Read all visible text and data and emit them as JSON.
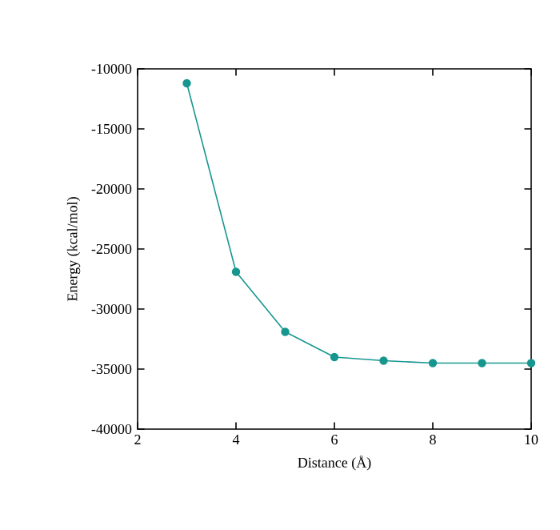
{
  "chart_data": {
    "type": "line",
    "xlabel": "Distance (Å)",
    "ylabel": "Energy (kcal/mol)",
    "x": [
      3,
      4,
      5,
      6,
      7,
      8,
      9,
      10
    ],
    "series": [
      {
        "color": "#17968f",
        "values": [
          -11200,
          -26900,
          -31900,
          -34000,
          -34300,
          -34500,
          -34500,
          -34500
        ]
      }
    ],
    "xlim": [
      2,
      10
    ],
    "xticks": [
      2,
      4,
      6,
      8,
      10
    ],
    "ylim": [
      -40000,
      -10000
    ],
    "yticks": [
      -40000,
      -35000,
      -30000,
      -25000,
      -20000,
      -15000,
      -10000
    ],
    "marker": "circle",
    "line_style": "solid",
    "grid": false
  }
}
